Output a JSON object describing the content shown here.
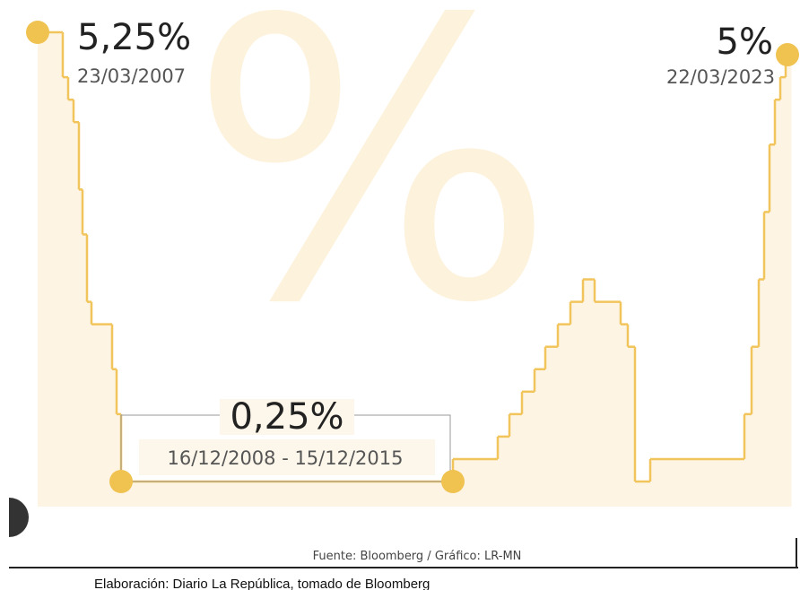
{
  "chart_data": {
    "type": "step",
    "series": [
      {
        "color": "#f2c55c",
        "values": [
          5.25,
          4.75,
          4.5,
          4.25,
          3.5,
          3.0,
          2.25,
          2.0,
          1.5,
          1.0,
          0.25,
          0.5,
          0.75,
          1.0,
          1.25,
          1.5,
          1.75,
          2.0,
          2.25,
          2.5,
          2.25,
          2.0,
          1.75,
          0.25,
          0.5,
          1.0,
          1.75,
          2.5,
          3.25,
          4.0,
          4.5,
          4.75,
          5.0
        ]
      }
    ],
    "watermark": "%",
    "annotations": [
      {
        "text": "5,25%",
        "date": "23/03/2007"
      },
      {
        "text": "0,25%",
        "date": "16/12/2008  - 15/12/2015"
      },
      {
        "text": "5%",
        "date": "22/03/2023"
      }
    ],
    "source": "Fuente: Bloomberg / Gráfico: LR-MN",
    "credit": "Elaboración: Diario La República, tomado de Bloomberg"
  }
}
